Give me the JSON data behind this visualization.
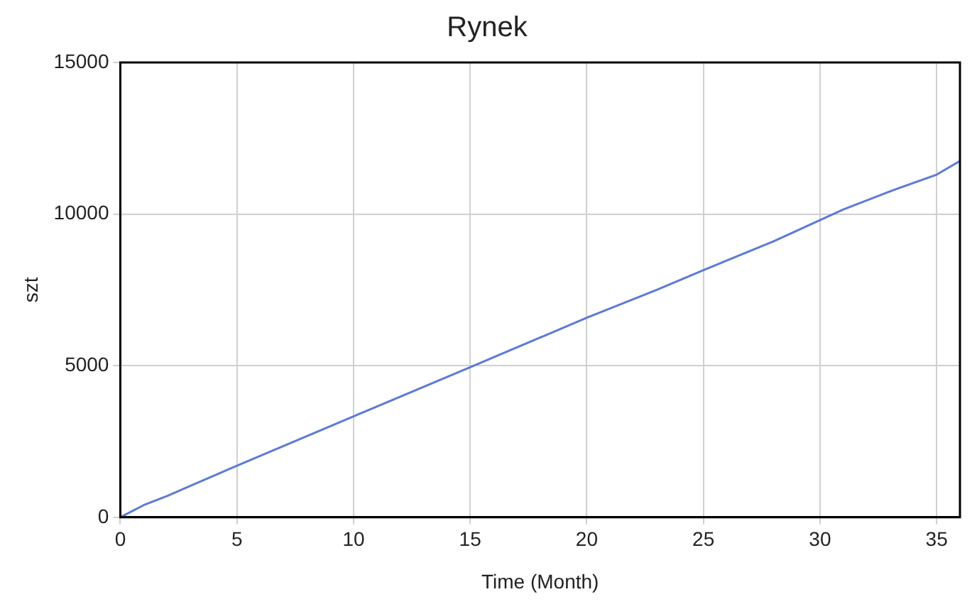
{
  "chart_data": {
    "type": "line",
    "title": "Rynek",
    "xlabel": "Time (Month)",
    "ylabel": "szt",
    "x": [
      0,
      1,
      2,
      5,
      10,
      15,
      20,
      23,
      25,
      28,
      30,
      31,
      33,
      35,
      36
    ],
    "series": [
      {
        "color": "#5b7bd5",
        "values": [
          0,
          400,
          700,
          1700,
          3330,
          4950,
          6580,
          7500,
          8150,
          9100,
          9800,
          10150,
          10750,
          11300,
          11750
        ]
      }
    ],
    "xlim": [
      0,
      36
    ],
    "xticks": [
      0,
      5,
      10,
      15,
      20,
      25,
      30,
      35
    ],
    "ylim": [
      0,
      15000
    ],
    "yticks": [
      0,
      5000,
      10000,
      15000
    ],
    "grid": true,
    "legend": false,
    "marker": "none",
    "line_style": "solid"
  }
}
